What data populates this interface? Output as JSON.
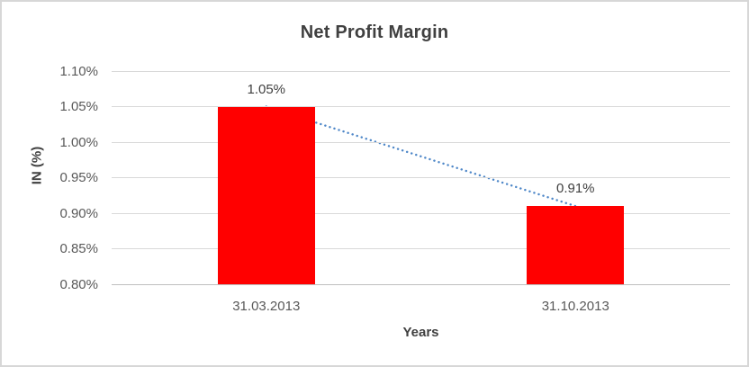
{
  "chart_data": {
    "type": "bar",
    "title": "Net Profit Margin",
    "xlabel": "Years",
    "ylabel": "IN (%)",
    "categories": [
      "31.03.2013",
      "31.10.2013"
    ],
    "values": [
      1.05,
      0.91
    ],
    "data_labels": [
      "1.05%",
      "0.91%"
    ],
    "ylim": [
      0.8,
      1.1
    ],
    "ytick_step": 0.05,
    "ytick_labels": [
      "0.80%",
      "0.85%",
      "0.90%",
      "0.95%",
      "1.00%",
      "1.05%",
      "1.10%"
    ],
    "grid": true,
    "legend": "none",
    "bar_color": "#ff0000",
    "trendline": {
      "style": "dotted",
      "color": "#4e87c8",
      "from_value": 1.05,
      "to_value": 0.91
    },
    "colors": {
      "gridline": "#d9d9d9",
      "axis_line": "#bfbfbf",
      "title_text": "#404040",
      "tick_text": "#595959",
      "frame_border": "#d7d7d7"
    }
  }
}
